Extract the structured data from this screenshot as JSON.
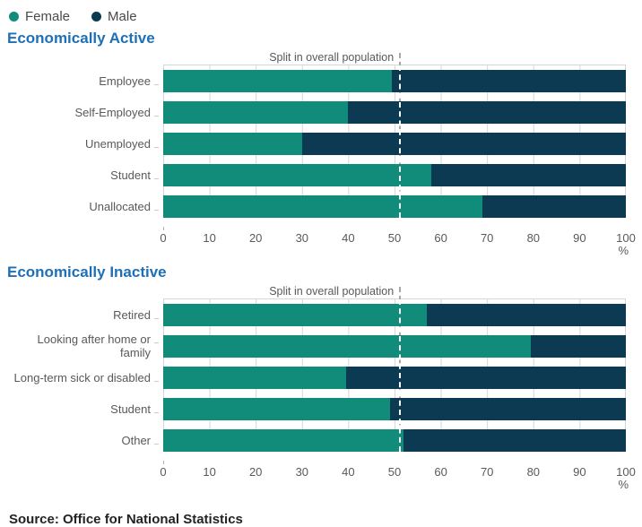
{
  "legend": {
    "items": [
      {
        "label": "Female",
        "color": "#128c7a"
      },
      {
        "label": "Male",
        "color": "#0c3a53"
      }
    ]
  },
  "colors": {
    "female": "#128c7a",
    "male": "#0c3a53",
    "grid": "#d6d6d6",
    "marker_gray": "#a8a8a8",
    "marker_white": "#ffffff",
    "title_blue": "#1d70b8"
  },
  "chart_data": [
    {
      "type": "bar",
      "orientation": "horizontal",
      "stacked": true,
      "title": "Economically Active",
      "marker_label": "Split in overall population",
      "split_marker": 51,
      "categories": [
        "Employee",
        "Self-Employed",
        "Unemployed",
        "Student",
        "Unallocated"
      ],
      "series": [
        {
          "name": "Female",
          "values": [
            49.5,
            40,
            30,
            58,
            69
          ]
        },
        {
          "name": "Male",
          "values": [
            50.5,
            60,
            70,
            42,
            31
          ]
        }
      ],
      "axis_ticks": [
        0,
        10,
        20,
        30,
        40,
        50,
        60,
        70,
        80,
        90,
        100
      ],
      "axis_unit": "%",
      "xlim": [
        0,
        100
      ],
      "grid": true,
      "legend_position": "top-left"
    },
    {
      "type": "bar",
      "orientation": "horizontal",
      "stacked": true,
      "title": "Economically Inactive",
      "marker_label": "Split in overall population",
      "split_marker": 51,
      "categories": [
        "Retired",
        "Looking after home or family",
        "Long-term sick or disabled",
        "Student",
        "Other"
      ],
      "series": [
        {
          "name": "Female",
          "values": [
            57,
            79.5,
            39.5,
            49,
            52
          ]
        },
        {
          "name": "Male",
          "values": [
            43,
            20.5,
            60.5,
            51,
            48
          ]
        }
      ],
      "axis_ticks": [
        0,
        10,
        20,
        30,
        40,
        50,
        60,
        70,
        80,
        90,
        100
      ],
      "axis_unit": "%",
      "xlim": [
        0,
        100
      ],
      "grid": true,
      "legend_position": "top-left"
    }
  ],
  "source": "Source: Office for National Statistics"
}
